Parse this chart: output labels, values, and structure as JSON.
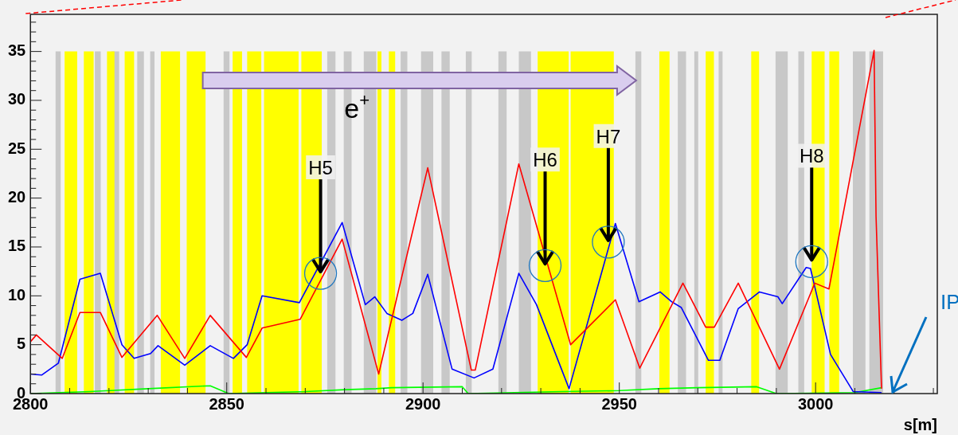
{
  "chart_data": {
    "type": "line",
    "xlabel": "s[m]",
    "xlim": [
      2800,
      3031
    ],
    "xticks": [
      2800,
      2850,
      2900,
      2950,
      3000
    ],
    "ylim": [
      0,
      38.8
    ],
    "yticks": [
      0,
      5,
      10,
      15,
      20,
      25,
      30,
      35
    ],
    "grid": false,
    "legend": false,
    "marker": "none",
    "line_style": "solid",
    "series": [
      {
        "color": "#ff0000",
        "x": [
          2800,
          2801.5,
          2808.1,
          2812.6,
          2817.8,
          2823.3,
          2832.3,
          2839.3,
          2845.8,
          2855.0,
          2859.0,
          2868.7,
          2879.4,
          2888.7,
          2901.2,
          2912.3,
          2913.3,
          2924.4,
          2937.6,
          2949.0,
          2955.2,
          2966.2,
          2972.0,
          2974.2,
          2980.3,
          2990.8,
          2999.8,
          3003.4,
          3014.9,
          3015.4,
          3016.8
        ],
        "values": [
          5.3,
          6.0,
          3.6,
          8.3,
          8.3,
          3.7,
          8.0,
          3.6,
          8.0,
          3.7,
          6.7,
          7.6,
          15.8,
          2.0,
          23.1,
          2.4,
          2.4,
          23.5,
          5.0,
          9.6,
          2.6,
          11.3,
          6.8,
          6.8,
          11.3,
          2.5,
          11.3,
          10.7,
          35.1,
          18.1,
          0.5
        ]
      },
      {
        "color": "#0000ff",
        "x": [
          2800,
          2802.9,
          2807.1,
          2812.6,
          2817.8,
          2823.3,
          2826.4,
          2830.6,
          2832.5,
          2839.3,
          2845.8,
          2851.7,
          2855.2,
          2859.0,
          2868.5,
          2879.4,
          2885.3,
          2887.7,
          2890.8,
          2894.6,
          2897.4,
          2901.2,
          2907.4,
          2913.0,
          2917.8,
          2924.4,
          2928.9,
          2937.2,
          2949.0,
          2955.0,
          2960.4,
          2963.3,
          2965.8,
          2972.7,
          2975.6,
          2980.3,
          2985.7,
          2990.4,
          2991.5,
          2997.6,
          2998.7,
          3003.8,
          3009.6,
          3016.8
        ],
        "values": [
          2.0,
          1.9,
          3.1,
          11.7,
          12.3,
          5.0,
          3.6,
          4.1,
          4.9,
          2.9,
          4.9,
          3.6,
          5.0,
          10.0,
          9.3,
          17.5,
          9.1,
          9.9,
          8.2,
          7.5,
          8.2,
          12.2,
          2.5,
          1.6,
          2.5,
          12.3,
          9.1,
          0.5,
          17.4,
          9.4,
          10.4,
          9.4,
          8.8,
          3.4,
          3.4,
          8.7,
          10.4,
          9.9,
          9.2,
          12.9,
          12.8,
          4.0,
          0.2,
          0.1
        ]
      },
      {
        "color": "#00ff00",
        "x": [
          2800,
          2815,
          2830,
          2845.8,
          2850.5,
          2870,
          2880,
          2888,
          2892,
          2910,
          2911.5,
          2935,
          2950,
          2960,
          2970,
          2985,
          2990,
          3010,
          3016.8
        ],
        "values": [
          0.0,
          0.2,
          0.5,
          0.8,
          0.0,
          0.2,
          0.4,
          0.5,
          0.6,
          0.7,
          0.0,
          0.2,
          0.3,
          0.5,
          0.6,
          0.7,
          0.0,
          0.1,
          0.6
        ]
      }
    ],
    "bands": [
      {
        "axis": "x",
        "from": 2806.4,
        "to": 2807.7,
        "color": "#c8c8c8"
      },
      {
        "axis": "x",
        "from": 2816.4,
        "to": 2817.9,
        "color": "#c8c8c8"
      },
      {
        "axis": "x",
        "from": 2820.6,
        "to": 2822.6,
        "color": "#c8c8c8"
      },
      {
        "axis": "x",
        "from": 2827.2,
        "to": 2828.9,
        "color": "#c8c8c8"
      },
      {
        "axis": "x",
        "from": 2830.5,
        "to": 2831.6,
        "color": "#c8c8c8"
      },
      {
        "axis": "x",
        "from": 2849.2,
        "to": 2850.7,
        "color": "#c8c8c8"
      },
      {
        "axis": "x",
        "from": 2875.6,
        "to": 2877.7,
        "color": "#c8c8c8"
      },
      {
        "axis": "x",
        "from": 2879.8,
        "to": 2881.8,
        "color": "#c8c8c8"
      },
      {
        "axis": "x",
        "from": 2884.9,
        "to": 2888.1,
        "color": "#c8c8c8"
      },
      {
        "axis": "x",
        "from": 2894.3,
        "to": 2896.0,
        "color": "#c8c8c8"
      },
      {
        "axis": "x",
        "from": 2899.5,
        "to": 2902.6,
        "color": "#c8c8c8"
      },
      {
        "axis": "x",
        "from": 2904.7,
        "to": 2906.8,
        "color": "#c8c8c8"
      },
      {
        "axis": "x",
        "from": 2910.9,
        "to": 2912.4,
        "color": "#c8c8c8"
      },
      {
        "axis": "x",
        "from": 2919.2,
        "to": 2921.3,
        "color": "#c8c8c8"
      },
      {
        "axis": "x",
        "from": 2924.4,
        "to": 2927.5,
        "color": "#c8c8c8"
      },
      {
        "axis": "x",
        "from": 2954.1,
        "to": 2955.6,
        "color": "#c8c8c8"
      },
      {
        "axis": "x",
        "from": 2964.9,
        "to": 2967.0,
        "color": "#c8c8c8"
      },
      {
        "axis": "x",
        "from": 2969.1,
        "to": 2970.1,
        "color": "#c8c8c8"
      },
      {
        "axis": "x",
        "from": 2975.3,
        "to": 2976.3,
        "color": "#c8c8c8"
      },
      {
        "axis": "x",
        "from": 2989.8,
        "to": 2992.9,
        "color": "#c8c8c8"
      },
      {
        "axis": "x",
        "from": 2995.6,
        "to": 2997.1,
        "color": "#c8c8c8"
      },
      {
        "axis": "x",
        "from": 3009.5,
        "to": 3012.7,
        "color": "#c8c8c8"
      },
      {
        "axis": "x",
        "from": 3013.7,
        "to": 3017.2,
        "color": "#c8c8c8"
      },
      {
        "axis": "x",
        "from": 2808.7,
        "to": 2811.9,
        "color": "#ffff00"
      },
      {
        "axis": "x",
        "from": 2813.6,
        "to": 2816.1,
        "color": "#ffff00"
      },
      {
        "axis": "x",
        "from": 2819.5,
        "to": 2821.4,
        "color": "#ffff00"
      },
      {
        "axis": "x",
        "from": 2824.0,
        "to": 2826.4,
        "color": "#ffff00"
      },
      {
        "axis": "x",
        "from": 2833.2,
        "to": 2838.1,
        "color": "#ffff00"
      },
      {
        "axis": "x",
        "from": 2839.8,
        "to": 2844.6,
        "color": "#ffff00"
      },
      {
        "axis": "x",
        "from": 2851.5,
        "to": 2853.9,
        "color": "#ffff00"
      },
      {
        "axis": "x",
        "from": 2855.2,
        "to": 2858.8,
        "color": "#ffff00"
      },
      {
        "axis": "x",
        "from": 2859.5,
        "to": 2868.3,
        "color": "#ffff00"
      },
      {
        "axis": "x",
        "from": 2869.0,
        "to": 2874.2,
        "color": "#ffff00"
      },
      {
        "axis": "x",
        "from": 2888.4,
        "to": 2889.4,
        "color": "#ffff00"
      },
      {
        "axis": "x",
        "from": 2891.3,
        "to": 2892.9,
        "color": "#ffff00"
      },
      {
        "axis": "x",
        "from": 2929.2,
        "to": 2937.1,
        "color": "#ffff00"
      },
      {
        "axis": "x",
        "from": 2937.6,
        "to": 2948.6,
        "color": "#ffff00"
      },
      {
        "axis": "x",
        "from": 2960.2,
        "to": 2962.8,
        "color": "#ffff00"
      },
      {
        "axis": "x",
        "from": 2972.0,
        "to": 2974.1,
        "color": "#ffff00"
      },
      {
        "axis": "x",
        "from": 2983.6,
        "to": 2985.6,
        "color": "#ffff00"
      },
      {
        "axis": "x",
        "from": 2999.0,
        "to": 3002.3,
        "color": "#ffff00"
      },
      {
        "axis": "x",
        "from": 3003.5,
        "to": 3006.0,
        "color": "#ffff00"
      }
    ],
    "annotations": [
      {
        "text": "H5",
        "x": 2873.9,
        "y": 12.3
      },
      {
        "text": "H6",
        "x": 2931.1,
        "y": 13.1
      },
      {
        "text": "H7",
        "x": 2947.2,
        "y": 15.5
      },
      {
        "text": "H8",
        "x": 2999.0,
        "y": 13.5
      },
      "e$^{+}$",
      "IP"
    ]
  }
}
